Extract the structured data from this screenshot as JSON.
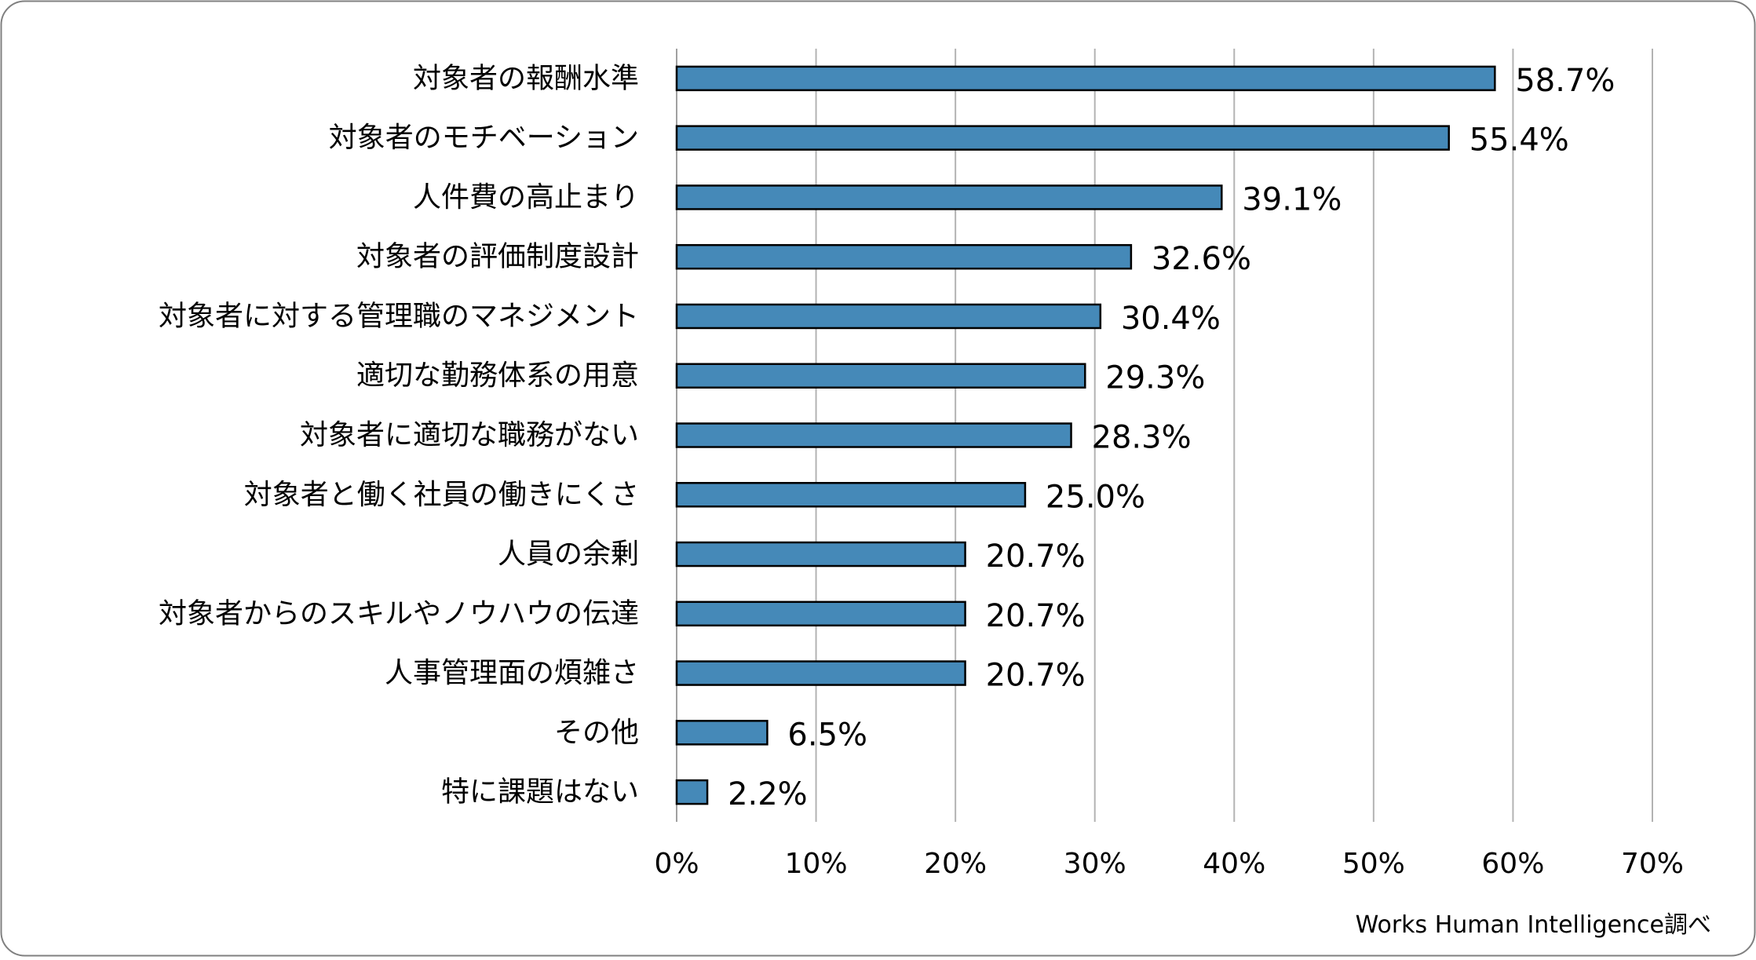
{
  "chart_data": {
    "type": "bar",
    "orientation": "horizontal",
    "categories": [
      "対象者の報酬水準",
      "対象者のモチベーション",
      "人件費の高止まり",
      "対象者の評価制度設計",
      "対象者に対する管理職のマネジメント",
      "適切な勤務体系の用意",
      "対象者に適切な職務がない",
      "対象者と働く社員の働きにくさ",
      "人員の余剰",
      "対象者からのスキルやノウハウの伝達",
      "人事管理面の煩雑さ",
      "その他",
      "特に課題はない"
    ],
    "values": [
      58.7,
      55.4,
      39.1,
      32.6,
      30.4,
      29.3,
      28.3,
      25.0,
      20.7,
      20.7,
      20.7,
      6.5,
      2.2
    ],
    "value_labels": [
      "58.7%",
      "55.4%",
      "39.1%",
      "32.6%",
      "30.4%",
      "29.3%",
      "28.3%",
      "25.0%",
      "20.7%",
      "20.7%",
      "20.7%",
      "6.5%",
      "2.2%"
    ],
    "xlim": [
      0,
      70
    ],
    "xticks": [
      0,
      10,
      20,
      30,
      40,
      50,
      60,
      70
    ],
    "xtick_labels": [
      "0%",
      "10%",
      "20%",
      "30%",
      "40%",
      "50%",
      "60%",
      "70%"
    ],
    "title": "",
    "xlabel": "",
    "ylabel": "",
    "grid": true,
    "bar_color": "#4589b8",
    "bar_edge_color": "#000000",
    "gridline_color": "#b3b3b3",
    "source": "Works Human Intelligence調べ"
  }
}
